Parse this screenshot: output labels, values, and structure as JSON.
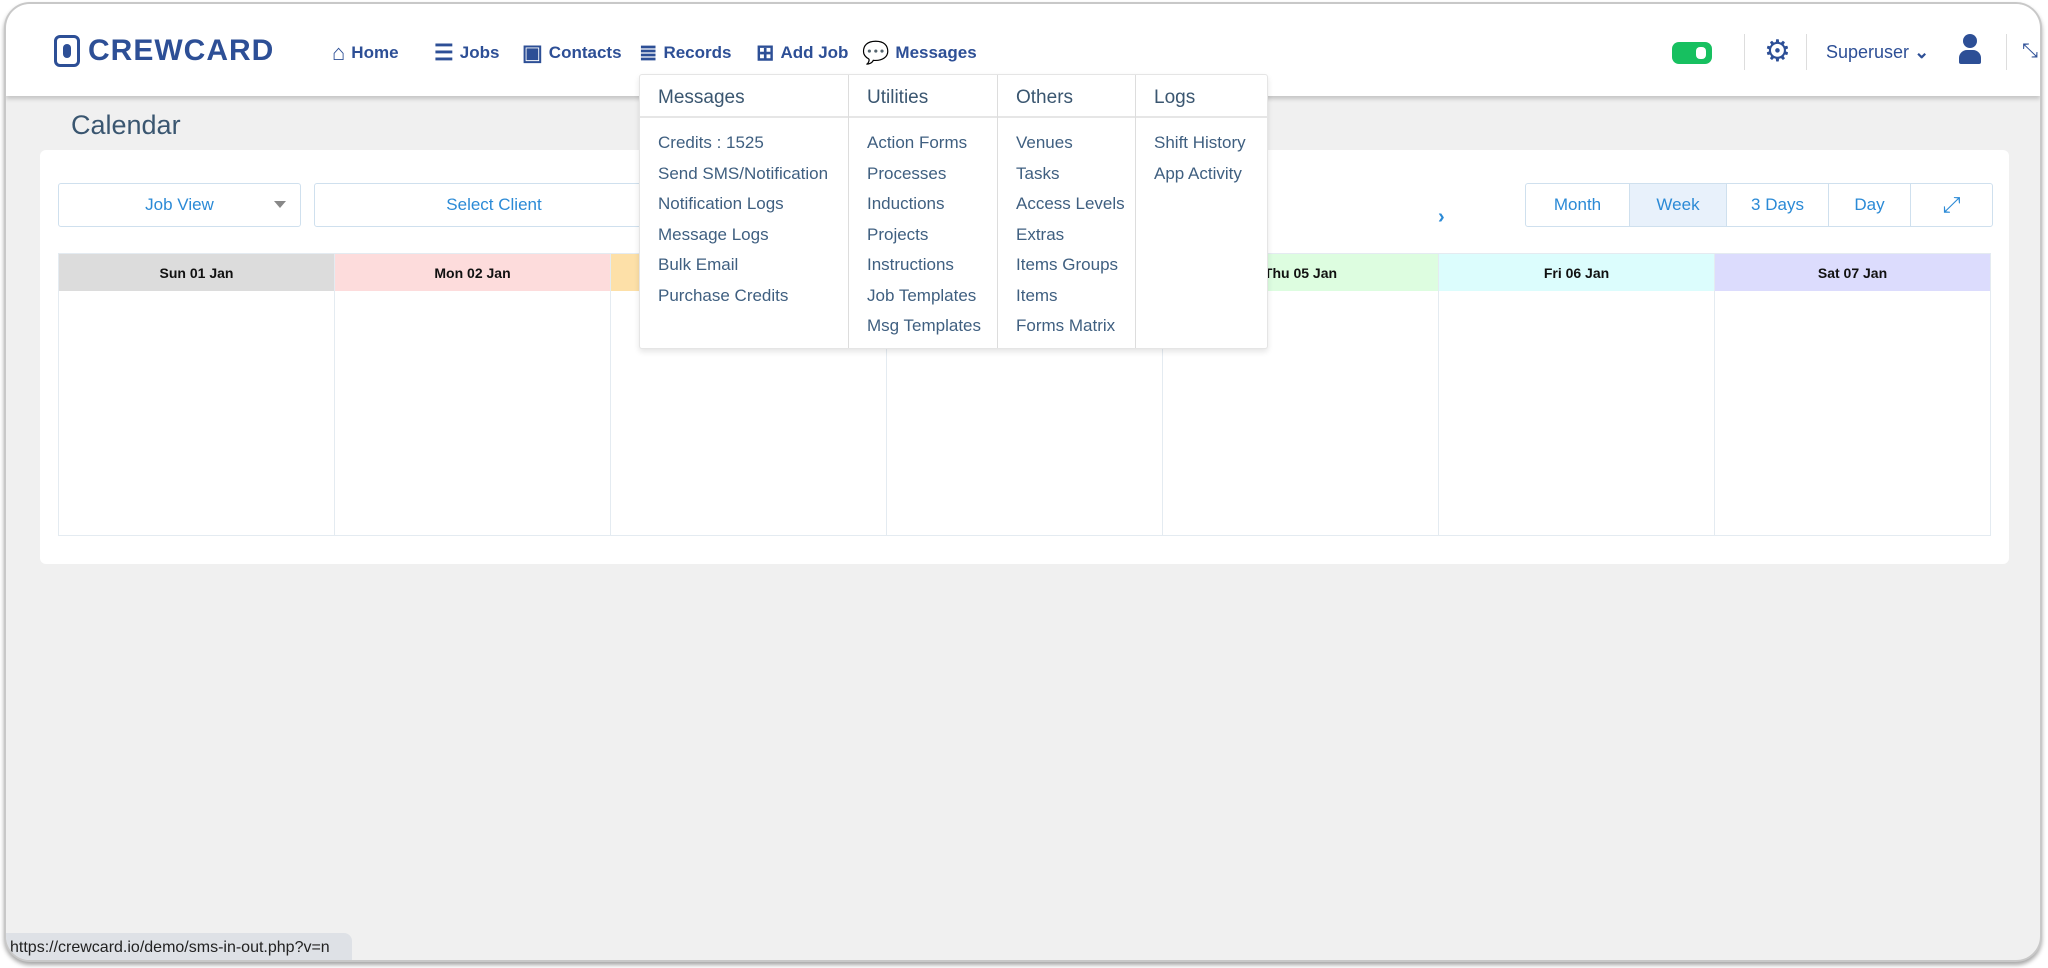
{
  "brand": "CREWCARD",
  "nav": [
    {
      "label": "Home",
      "icon": "home-icon"
    },
    {
      "label": "Jobs",
      "icon": "list-icon"
    },
    {
      "label": "Contacts",
      "icon": "contact-book-icon"
    },
    {
      "label": "Records",
      "icon": "records-icon"
    },
    {
      "label": "Add Job",
      "icon": "plus-square-icon"
    },
    {
      "label": "Messages",
      "icon": "comments-icon"
    }
  ],
  "header": {
    "user": "Superuser",
    "toggle_color": "#17c060"
  },
  "page": {
    "title": "Calendar"
  },
  "toolbar": {
    "job_view": "Job View",
    "select_client": "Select Client",
    "next": "›",
    "views": [
      "Month",
      "Week",
      "3 Days",
      "Day"
    ],
    "active_view": "Week"
  },
  "calendar": {
    "days": [
      {
        "label": "Sun 01 Jan",
        "color": "#dcdcdc"
      },
      {
        "label": "Mon 02 Jan",
        "color": "#fddcdc"
      },
      {
        "label": "",
        "color": "#fde0a8"
      },
      {
        "label": "",
        "color": "#ffffff"
      },
      {
        "label": "Thu 05 Jan",
        "color": "#ddfde0"
      },
      {
        "label": "Fri 06 Jan",
        "color": "#dcfdfd"
      },
      {
        "label": "Sat 07 Jan",
        "color": "#dcdcfd"
      }
    ]
  },
  "dropdown": [
    {
      "title": "Messages",
      "items": [
        "Credits : 1525",
        "Send SMS/Notification",
        "Notification Logs",
        "Message Logs",
        "Bulk Email",
        "Purchase Credits"
      ]
    },
    {
      "title": "Utilities",
      "items": [
        "Action Forms",
        "Processes",
        "Inductions",
        "Projects",
        "Instructions",
        "Job Templates",
        "Msg Templates"
      ]
    },
    {
      "title": "Others",
      "items": [
        "Venues",
        "Tasks",
        "Access Levels",
        "Extras",
        "Items Groups",
        "Items",
        "Forms Matrix"
      ]
    },
    {
      "title": "Logs",
      "items": [
        "Shift History",
        "App Activity"
      ]
    }
  ],
  "status_url": "https://crewcard.io/demo/sms-in-out.php?v=n"
}
